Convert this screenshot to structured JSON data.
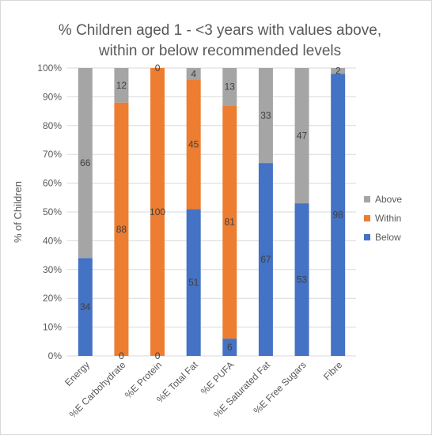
{
  "chart_data": {
    "type": "bar",
    "stacked": true,
    "title_lines": [
      "% Children aged 1 - <3 years with values above,",
      "within or below recommended levels"
    ],
    "xlabel": "",
    "ylabel": "% of Children",
    "ylim": [
      0,
      100
    ],
    "yticks": [
      0,
      10,
      20,
      30,
      40,
      50,
      60,
      70,
      80,
      90,
      100
    ],
    "ytick_suffix": "%",
    "grid": true,
    "legend_position": "right",
    "categories": [
      "Energy",
      "%E Carbohydrate",
      "%E Protein",
      "%E Total Fat",
      "%E PUFA",
      "%E Saturated Fat",
      "%E Free Sugars",
      "Fibre"
    ],
    "series": [
      {
        "name": "Below",
        "color": "#4472c4",
        "values": [
          34,
          0,
          0,
          51,
          6,
          67,
          53,
          98
        ]
      },
      {
        "name": "Within",
        "color": "#ed7d31",
        "values": [
          null,
          88,
          100,
          45,
          81,
          null,
          null,
          null
        ]
      },
      {
        "name": "Above",
        "color": "#a5a5a5",
        "values": [
          66,
          12,
          0,
          4,
          13,
          33,
          47,
          2
        ]
      }
    ]
  }
}
